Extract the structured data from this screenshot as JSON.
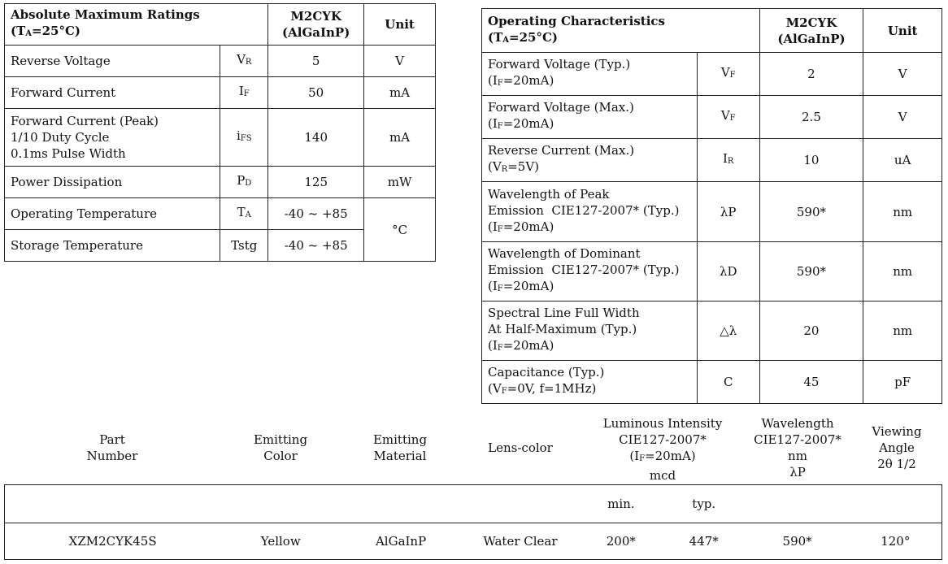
{
  "amr": {
    "title": "Absolute Maximum Ratings",
    "cond_prefix": "(T",
    "cond_sub": "A",
    "cond_suffix": "=25°C)",
    "model": "M2CYK",
    "material": "(AlGaInP)",
    "unit_header": "Unit",
    "rows": [
      {
        "p": [
          "Reverse Voltage"
        ],
        "sym": "V",
        "sub": "R",
        "val": "5",
        "unit": "V"
      },
      {
        "p": [
          "Forward Current"
        ],
        "sym": "I",
        "sub": "F",
        "val": "50",
        "unit": "mA"
      },
      {
        "p": [
          "Forward Current (Peak)",
          "1/10 Duty Cycle",
          "0.1ms Pulse Width"
        ],
        "sym": "i",
        "sub": "FS",
        "val": "140",
        "unit": "mA"
      },
      {
        "p": [
          "Power Dissipation"
        ],
        "sym": "P",
        "sub": "D",
        "val": "125",
        "unit": "mW"
      },
      {
        "p": [
          "Operating Temperature"
        ],
        "sym": "T",
        "sub": "A",
        "val": "-40 ~ +85",
        "unit": "°C"
      },
      {
        "p": [
          "Storage Temperature"
        ],
        "sym": "Tstg",
        "sub": "",
        "val": "-40 ~ +85",
        "unit": ""
      }
    ]
  },
  "oc": {
    "title": "Operating Characteristics",
    "cond_prefix": "(T",
    "cond_sub": "A",
    "cond_suffix": "=25°C)",
    "model": "M2CYK",
    "material": "(AlGaInP)",
    "unit_header": "Unit",
    "rows": [
      {
        "p1": "Forward Voltage (Typ.)",
        "p2": "",
        "cp": "(I",
        "cs": "F",
        "cx": "=20mA)",
        "sym": "V",
        "sub": "F",
        "val": "2",
        "unit": "V"
      },
      {
        "p1": "Forward Voltage (Max.)",
        "p2": "",
        "cp": "(I",
        "cs": "F",
        "cx": "=20mA)",
        "sym": "V",
        "sub": "F",
        "val": "2.5",
        "unit": "V"
      },
      {
        "p1": "Reverse Current (Max.)",
        "p2": "",
        "cp": "(V",
        "cs": "R",
        "cx": "=5V)",
        "sym": "I",
        "sub": "R",
        "val": "10",
        "unit": "uA"
      },
      {
        "p1": "Wavelength of Peak",
        "p2": "Emission  CIE127-2007* (Typ.)",
        "cp": "(I",
        "cs": "F",
        "cx": "=20mA)",
        "sym": "λP",
        "sub": "",
        "val": "590*",
        "unit": "nm"
      },
      {
        "p1": "Wavelength of Dominant",
        "p2": "Emission  CIE127-2007* (Typ.)",
        "cp": "(I",
        "cs": "F",
        "cx": "=20mA)",
        "sym": "λD",
        "sub": "",
        "val": "590*",
        "unit": "nm"
      },
      {
        "p1": "Spectral Line Full Width",
        "p2": "At Half-Maximum (Typ.)",
        "cp": "(I",
        "cs": "F",
        "cx": "=20mA)",
        "sym": "△λ",
        "sub": "",
        "val": "20",
        "unit": "nm"
      },
      {
        "p1": "Capacitance (Typ.)",
        "p2": "",
        "cp": "(V",
        "cs": "F",
        "cx": "=0V, f=1MHz)",
        "sym": "C",
        "sub": "",
        "val": "45",
        "unit": "pF"
      }
    ]
  },
  "selection": {
    "headers": {
      "part": [
        "Part",
        "Number"
      ],
      "color": [
        "Emitting",
        "Color"
      ],
      "material": [
        "Emitting",
        "Material"
      ],
      "lens": [
        "Lens-color"
      ],
      "lum": [
        "Luminous Intensity",
        "CIE127-2007*",
        "(I",
        "F",
        "=20mA)",
        "mcd"
      ],
      "wave": [
        "Wavelength",
        "CIE127-2007*",
        "nm",
        "λP"
      ],
      "angle": [
        "Viewing",
        "Angle",
        "2θ 1/2"
      ]
    },
    "subheaders": {
      "min": "min.",
      "typ": "typ."
    },
    "row": {
      "part": "XZM2CYK45S",
      "color": "Yellow",
      "material": "AlGaInP",
      "lens": "Water Clear",
      "min": "200*",
      "typ": "447*",
      "wave": "590*",
      "angle": "120°"
    }
  }
}
